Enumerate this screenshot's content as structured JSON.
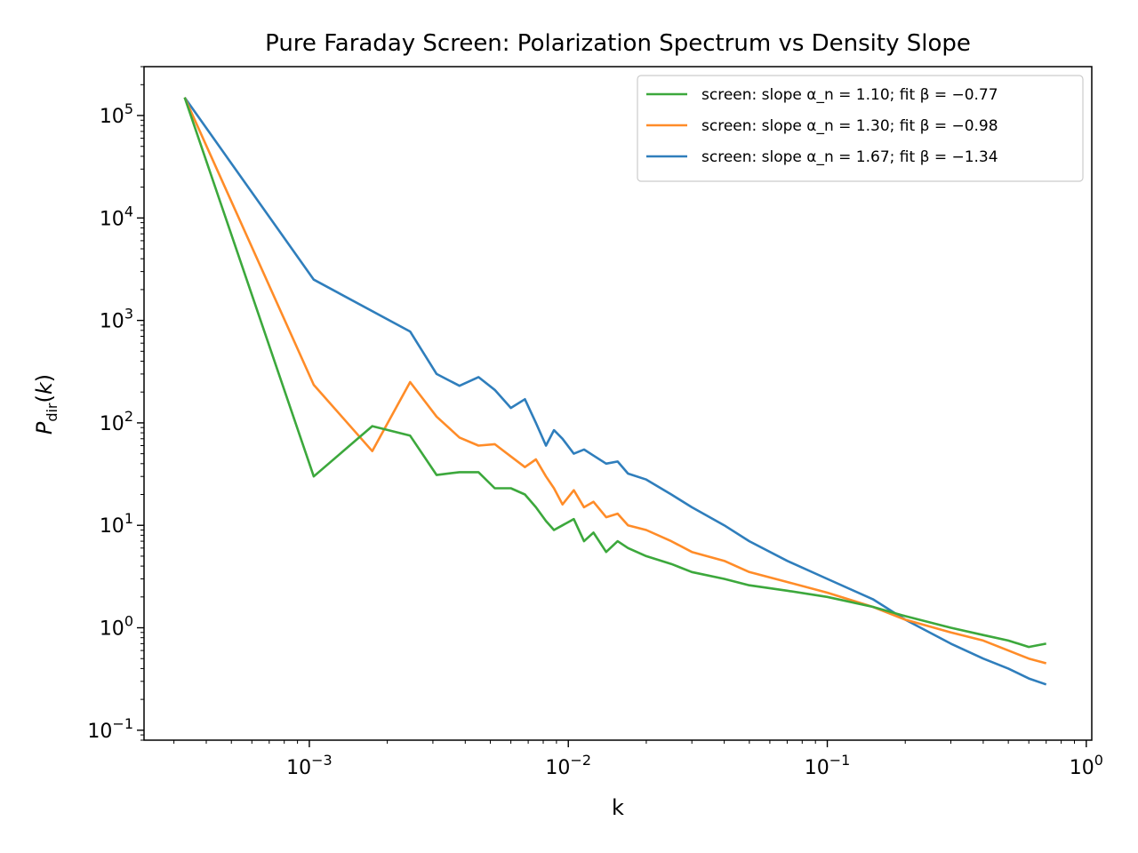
{
  "chart_data": {
    "type": "line",
    "title": "Pure Faraday Screen: Polarization Spectrum vs Density Slope",
    "xlabel": "k",
    "ylabel": "P_dir(k)",
    "xscale": "log",
    "yscale": "log",
    "xlim": [
      0.00023,
      1.05
    ],
    "ylim": [
      0.08,
      300000
    ],
    "x_tick_labels": [
      "10^-3",
      "10^-2",
      "10^-1",
      "10^0"
    ],
    "y_tick_labels": [
      "10^-1",
      "10^0",
      "10^1",
      "10^2",
      "10^3",
      "10^4",
      "10^5"
    ],
    "legend_position": "upper right",
    "series": [
      {
        "name": "screen: slope α_n = 1.10; fit β = −0.77",
        "color": "#3ca83c",
        "x": [
          0.00033,
          0.00104,
          0.00175,
          0.00245,
          0.0031,
          0.0038,
          0.0045,
          0.0052,
          0.006,
          0.0068,
          0.0075,
          0.0082,
          0.0088,
          0.0095,
          0.0105,
          0.0115,
          0.0125,
          0.014,
          0.0155,
          0.017,
          0.02,
          0.025,
          0.03,
          0.04,
          0.05,
          0.07,
          0.1,
          0.15,
          0.2,
          0.3,
          0.4,
          0.5,
          0.6,
          0.7
        ],
        "y": [
          150000,
          30,
          93,
          75,
          31,
          33,
          33,
          23,
          23,
          20,
          15,
          11,
          9,
          10,
          11.5,
          7,
          8.5,
          5.5,
          7,
          6,
          5,
          4.2,
          3.5,
          3.0,
          2.6,
          2.3,
          2.0,
          1.6,
          1.3,
          1.0,
          0.85,
          0.75,
          0.65,
          0.7
        ]
      },
      {
        "name": "screen: slope α_n = 1.30; fit β = −0.98",
        "color": "#ff8c28",
        "x": [
          0.00033,
          0.00104,
          0.00175,
          0.00245,
          0.0031,
          0.0038,
          0.0045,
          0.0052,
          0.006,
          0.0068,
          0.0075,
          0.0082,
          0.0088,
          0.0095,
          0.0105,
          0.0115,
          0.0125,
          0.014,
          0.0155,
          0.017,
          0.02,
          0.025,
          0.03,
          0.04,
          0.05,
          0.07,
          0.1,
          0.15,
          0.2,
          0.3,
          0.4,
          0.5,
          0.6,
          0.7
        ],
        "y": [
          150000,
          235,
          53,
          250,
          115,
          72,
          60,
          62,
          47,
          37,
          44,
          30,
          23,
          16,
          22,
          15,
          17,
          12,
          13,
          10,
          9,
          7,
          5.5,
          4.5,
          3.5,
          2.8,
          2.2,
          1.6,
          1.2,
          0.9,
          0.75,
          0.6,
          0.5,
          0.45
        ]
      },
      {
        "name": "screen: slope α_n = 1.67; fit β = −1.34",
        "color": "#2f7ebc",
        "x": [
          0.00033,
          0.00104,
          0.00245,
          0.0031,
          0.0038,
          0.0045,
          0.0052,
          0.006,
          0.0068,
          0.0075,
          0.0082,
          0.0088,
          0.0095,
          0.0105,
          0.0115,
          0.0125,
          0.014,
          0.0155,
          0.017,
          0.02,
          0.025,
          0.03,
          0.04,
          0.05,
          0.07,
          0.1,
          0.15,
          0.2,
          0.3,
          0.4,
          0.5,
          0.6,
          0.7
        ],
        "y": [
          150000,
          2500,
          780,
          300,
          230,
          280,
          210,
          140,
          170,
          100,
          60,
          85,
          70,
          50,
          55,
          48,
          40,
          42,
          32,
          28,
          20,
          15,
          10,
          7,
          4.5,
          3.0,
          1.9,
          1.2,
          0.7,
          0.5,
          0.4,
          0.32,
          0.28
        ]
      }
    ]
  }
}
